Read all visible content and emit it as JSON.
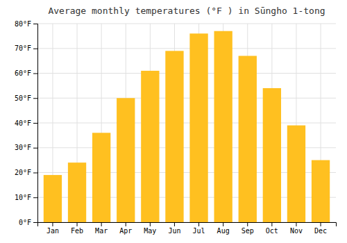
{
  "chart_data": {
    "type": "bar",
    "title": "Average monthly temperatures (°F ) in Sūngho 1-tong",
    "categories": [
      "Jan",
      "Feb",
      "Mar",
      "Apr",
      "May",
      "Jun",
      "Jul",
      "Aug",
      "Sep",
      "Oct",
      "Nov",
      "Dec"
    ],
    "values": [
      19,
      24,
      36,
      50,
      61,
      69,
      76,
      77,
      67,
      54,
      39,
      25
    ],
    "color": "#FFC020",
    "ylim": [
      0,
      80
    ],
    "yticks": [
      {
        "value": 0,
        "label": "0°F"
      },
      {
        "value": 10,
        "label": "10°F"
      },
      {
        "value": 20,
        "label": "20°F"
      },
      {
        "value": 30,
        "label": "30°F"
      },
      {
        "value": 40,
        "label": "40°F"
      },
      {
        "value": 50,
        "label": "50°F"
      },
      {
        "value": 60,
        "label": "60°F"
      },
      {
        "value": 70,
        "label": "70°F"
      },
      {
        "value": 80,
        "label": "80°F"
      }
    ],
    "grid": true
  }
}
